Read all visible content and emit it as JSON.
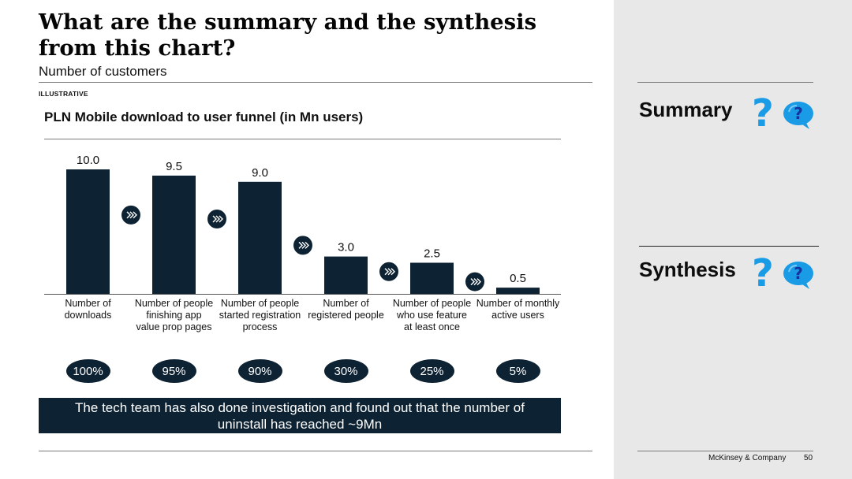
{
  "slide": {
    "title": "What are the summary and the synthesis from this chart?",
    "subtitle": "Number of customers",
    "tag": "ILLUSTRATIVE",
    "note": "The tech team has also done investigation and found out that the number of uninstall has reached ~9Mn",
    "summary_label": "Summary",
    "synthesis_label": "Synthesis",
    "question_glyph": "?",
    "footer_brand": "McKinsey & Company",
    "page_number": "50"
  },
  "chart_data": {
    "type": "bar",
    "title": "PLN Mobile download to user funnel (in Mn users)",
    "categories": [
      [
        "Number of",
        "downloads"
      ],
      [
        "Number of people",
        "finishing app",
        "value prop pages"
      ],
      [
        "Number of people",
        "started registration",
        "process"
      ],
      [
        "Number of",
        "registered people"
      ],
      [
        "Number of people",
        "who use feature",
        "at least once"
      ],
      [
        "Number of monthly",
        "active users"
      ]
    ],
    "values": [
      10.0,
      9.5,
      9.0,
      3.0,
      2.5,
      0.5
    ],
    "value_labels": [
      "10.0",
      "9.5",
      "9.0",
      "3.0",
      "2.5",
      "0.5"
    ],
    "percentages": [
      "100%",
      "95%",
      "90%",
      "30%",
      "25%",
      "5%"
    ],
    "ylim": [
      0,
      10
    ],
    "colors": {
      "bar": "#0d2233",
      "badge": "#0d2233",
      "accent": "#1a9be6"
    }
  }
}
